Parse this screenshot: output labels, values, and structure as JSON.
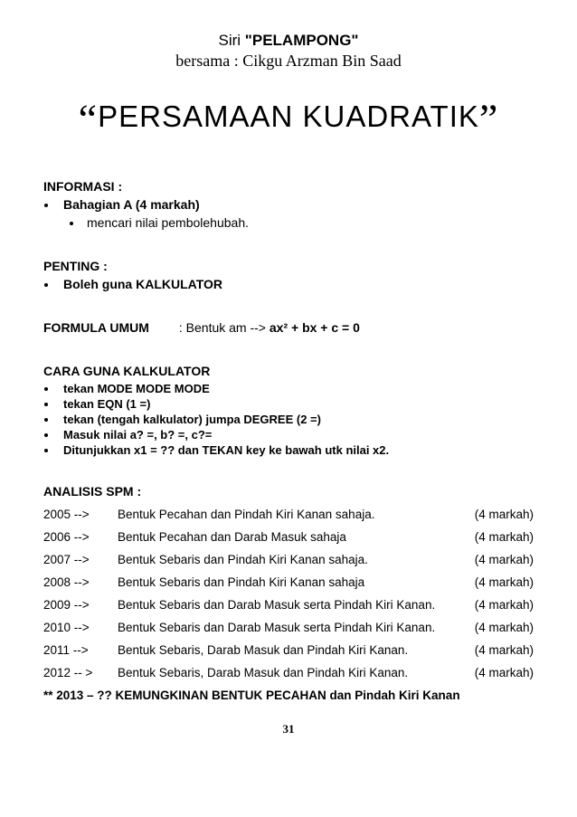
{
  "header": {
    "siri_prefix": "Siri ",
    "siri_title": "\"PELAMPONG\"",
    "bersama": "bersama : Cikgu Arzman Bin Saad"
  },
  "title": {
    "open_quote": "“",
    "text": "PERSAMAAN KUADRATIK",
    "close_quote": "”"
  },
  "informasi": {
    "label": "INFORMASI :",
    "item1": "Bahagian A (4 markah)",
    "item1_sub": "mencari nilai pembolehubah."
  },
  "penting": {
    "label": "PENTING   :",
    "item1": "Boleh guna KALKULATOR"
  },
  "formula": {
    "label": "FORMULA UMUM",
    "text_prefix": ": Bentuk am --> ",
    "expr": "ax² + bx + c = 0"
  },
  "cara": {
    "label": "CARA GUNA KALKULATOR",
    "i1": "tekan MODE MODE MODE",
    "i2": "tekan EQN (1 =)",
    "i3": "tekan (tengah kalkulator) jumpa DEGREE (2 =)",
    "i4": "Masuk nilai a? =, b? =, c?=",
    "i5": "Ditunjukkan x1 = ?? dan TEKAN key ke bawah utk nilai x2."
  },
  "analisis": {
    "label": "ANALISIS SPM :",
    "rows": [
      {
        "yr": "2005 -->",
        "desc": "Bentuk Pecahan dan Pindah Kiri Kanan sahaja.",
        "mk": "(4 markah)"
      },
      {
        "yr": "2006 -->",
        "desc": "Bentuk Pecahan dan Darab Masuk sahaja",
        "mk": "(4 markah)"
      },
      {
        "yr": "2007 -->",
        "desc": "Bentuk Sebaris dan Pindah Kiri Kanan sahaja.",
        "mk": "(4 markah)"
      },
      {
        "yr": "2008 -->",
        "desc": "Bentuk Sebaris dan Pindah Kiri Kanan sahaja",
        "mk": "(4 markah)"
      },
      {
        "yr": "2009 -->",
        "desc": "Bentuk Sebaris dan Darab Masuk serta Pindah Kiri Kanan.",
        "mk": "(4 markah)"
      },
      {
        "yr": "2010 -->",
        "desc": "Bentuk Sebaris dan Darab Masuk serta Pindah Kiri Kanan.",
        "mk": "(4 markah)"
      },
      {
        "yr": "2011 -->",
        "desc": "Bentuk Sebaris, Darab Masuk dan Pindah Kiri Kanan.",
        "mk": "(4 markah)"
      },
      {
        "yr": "2012 -- >",
        "desc": "Bentuk Sebaris, Darab Masuk dan Pindah Kiri Kanan.",
        "mk": "(4 markah)"
      }
    ],
    "future": "** 2013 – ?? KEMUNGKINAN  BENTUK PECAHAN dan Pindah Kiri Kanan"
  },
  "page_number": "31"
}
